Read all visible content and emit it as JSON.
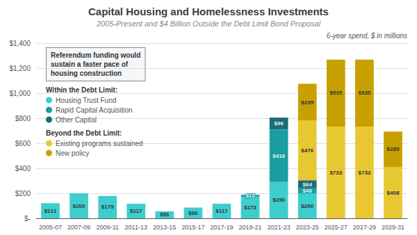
{
  "chart_data": {
    "type": "bar",
    "stacked": true,
    "data_labels": true,
    "grid": true,
    "title": "Capital Housing and Homelessness Investments",
    "subtitle": "2005-Present and $4 Billion Outside the Debt Limit Bond Proposal",
    "annotations": [
      "6-year spend, $ in millions",
      "Referendum funding would\nsustain a faster pace of\nhousing construction"
    ],
    "categories": [
      "2005-07",
      "2007-09",
      "2009-11",
      "2011-13",
      "2013-15",
      "2015-17",
      "2017-19",
      "2019-21",
      "2021-23",
      "2023-25",
      "2025-27",
      "2027-29",
      "2029-31"
    ],
    "series": [
      {
        "name": "Housing Trust Fund",
        "group": "Within the Debt Limit:",
        "color": "#3ecece",
        "values": [
          121,
          200,
          179,
          117,
          56,
          86,
          117,
          173,
          290,
          200,
          0,
          0,
          0
        ],
        "value_labels": [
          "$121",
          "$200",
          "$179",
          "$117",
          "$56",
          "$86",
          "$117",
          "$173",
          "$290",
          "$200",
          null,
          null,
          null
        ]
      },
      {
        "name": "Rapid Capital Acquisition",
        "group": "Within the Debt Limit:",
        "color": "#1a9ea0",
        "values": [
          0,
          0,
          0,
          0,
          0,
          0,
          0,
          15,
          419,
          40,
          0,
          0,
          0
        ],
        "value_labels": [
          null,
          null,
          null,
          null,
          null,
          null,
          null,
          "$15",
          "$419",
          "$40",
          null,
          null,
          null
        ]
      },
      {
        "name": "Other Capital",
        "group": "Within the Debt Limit:",
        "color": "#1a6e78",
        "values": [
          0,
          0,
          0,
          0,
          0,
          0,
          0,
          0,
          96,
          64,
          0,
          0,
          0
        ],
        "value_labels": [
          null,
          null,
          null,
          null,
          null,
          null,
          null,
          null,
          "$96",
          "$64",
          null,
          null,
          null
        ]
      },
      {
        "name": "Existing programs sustained",
        "group": "Beyond the Debt Limit:",
        "color": "#e8c832",
        "values": [
          0,
          0,
          0,
          0,
          0,
          0,
          0,
          0,
          0,
          476,
          733,
          733,
          408
        ],
        "value_labels": [
          null,
          null,
          null,
          null,
          null,
          null,
          null,
          null,
          null,
          "$476",
          "$733",
          "$733",
          "$408"
        ]
      },
      {
        "name": "New policy",
        "group": "Beyond the Debt Limit:",
        "color": "#c8a000",
        "values": [
          0,
          0,
          0,
          0,
          0,
          0,
          0,
          0,
          0,
          295,
          535,
          535,
          285
        ],
        "value_labels": [
          null,
          null,
          null,
          null,
          null,
          null,
          null,
          null,
          null,
          "$295",
          "$535",
          "$535",
          "$285"
        ]
      }
    ],
    "ylim": [
      0,
      1400
    ],
    "yticks": [
      {
        "value": 0,
        "label": "$-"
      },
      {
        "value": 200,
        "label": "$200"
      },
      {
        "value": 400,
        "label": "$400"
      },
      {
        "value": 600,
        "label": "$600"
      },
      {
        "value": 800,
        "label": "$800"
      },
      {
        "value": 1000,
        "label": "$1,000"
      },
      {
        "value": 1200,
        "label": "$1,200"
      },
      {
        "value": 1400,
        "label": "$1,400"
      }
    ]
  }
}
